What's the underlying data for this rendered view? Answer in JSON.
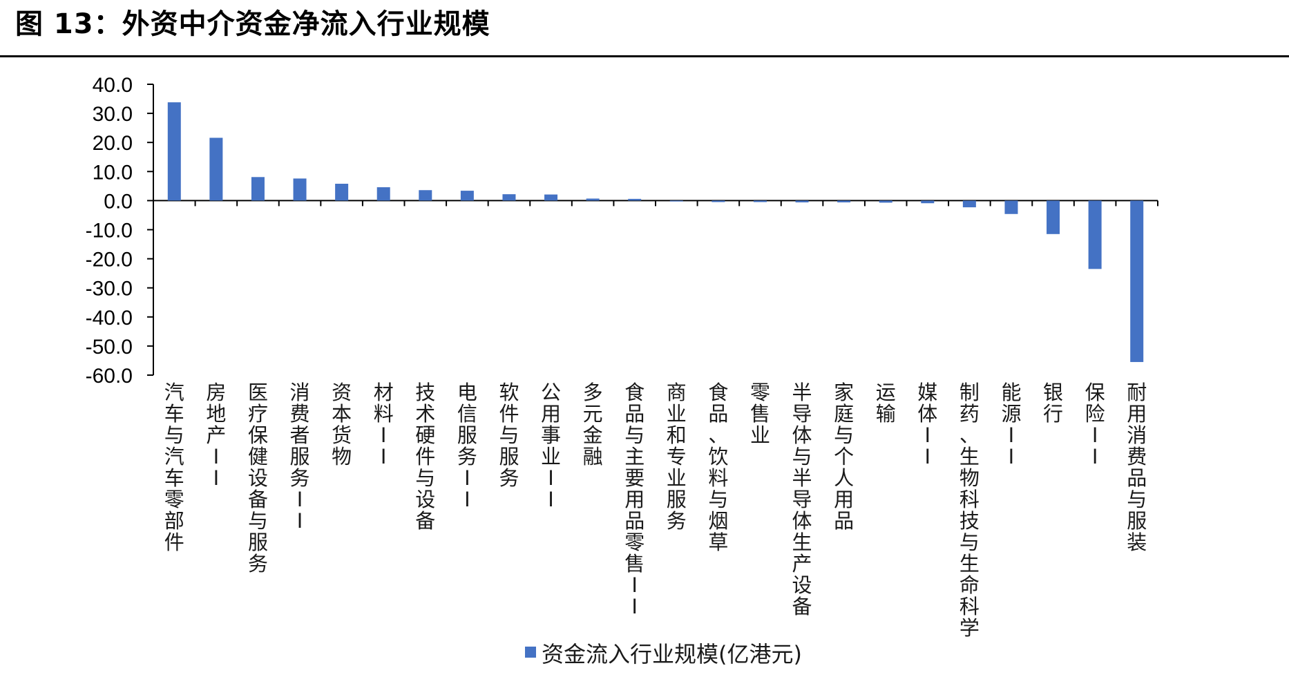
{
  "figure": {
    "title": "图 13：外资中介资金净流入行业规模"
  },
  "chart_data": {
    "type": "bar",
    "ylim": [
      -60,
      40
    ],
    "yticks": [
      "40.0",
      "30.0",
      "20.0",
      "10.0",
      "0.0",
      "-10.0",
      "-20.0",
      "-30.0",
      "-40.0",
      "-50.0",
      "-60.0"
    ],
    "categories": [
      "汽车与汽车零部件",
      "房地产II",
      "医疗保健设备与服务",
      "消费者服务II",
      "资本货物",
      "材料II",
      "技术硬件与设备",
      "电信服务II",
      "软件与服务",
      "公用事业II",
      "多元金融",
      "食品与主要用品零售II",
      "商业和专业服务",
      "食品、饮料与烟草",
      "零售业",
      "半导体与半导体生产设备",
      "家庭与个人用品",
      "运输",
      "媒体II",
      "制药、生物科技与生命科学",
      "能源II",
      "银行",
      "保险II",
      "耐用消费品与服装"
    ],
    "series": [
      {
        "name": "资金流入行业规模(亿港元)",
        "color": "#4472C4",
        "values": [
          33.8,
          21.6,
          8.1,
          7.6,
          5.8,
          4.6,
          3.6,
          3.4,
          2.2,
          2.1,
          0.7,
          0.6,
          -0.3,
          -0.5,
          -0.5,
          -0.6,
          -0.6,
          -0.7,
          -0.9,
          -2.3,
          -4.6,
          -11.5,
          -23.5,
          -55.5
        ]
      }
    ],
    "grid": false,
    "legend": "bottom"
  }
}
